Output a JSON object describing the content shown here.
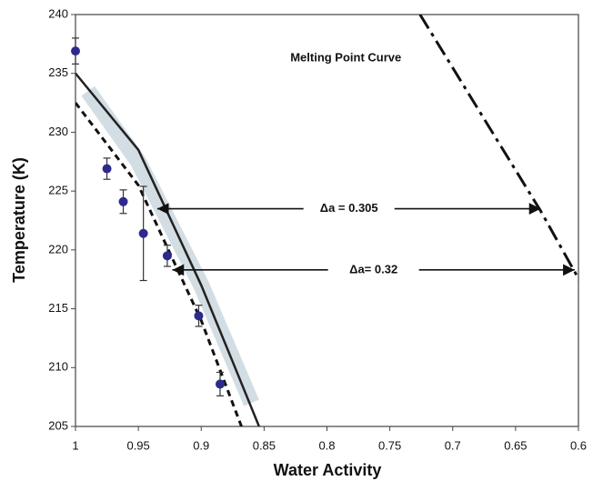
{
  "chart_data": {
    "type": "scatter",
    "xlabel": "Water Activity",
    "ylabel": "Temperature (K)",
    "xlim": [
      1,
      0.6
    ],
    "ylim": [
      205,
      240
    ],
    "xticks": [
      1,
      0.95,
      0.9,
      0.85,
      0.8,
      0.75,
      0.7,
      0.65,
      0.6
    ],
    "yticks": [
      205,
      210,
      215,
      220,
      225,
      230,
      235,
      240
    ],
    "points": {
      "color": "#2e2a8c",
      "x": [
        1.0,
        0.975,
        0.962,
        0.946,
        0.927,
        0.902,
        0.885
      ],
      "values": [
        236.9,
        226.9,
        224.1,
        221.4,
        219.5,
        214.4,
        208.6
      ],
      "errors": [
        1.1,
        0.9,
        1.0,
        4.0,
        0.9,
        0.9,
        1.0
      ]
    },
    "lines": [
      {
        "style": "band",
        "color": "#d3dde4",
        "x": [
          0.99,
          0.95,
          0.9,
          0.86
        ],
        "values": [
          233.5,
          227.5,
          217,
          207
        ]
      },
      {
        "style": "solid",
        "color": "#222222",
        "x": [
          1,
          0.95,
          0.9,
          0.875,
          0.854
        ],
        "values": [
          235,
          228.5,
          217,
          210.5,
          205
        ]
      },
      {
        "style": "dashed",
        "color": "#111111",
        "x": [
          1,
          0.95,
          0.9,
          0.868
        ],
        "values": [
          232.5,
          225.5,
          214,
          205
        ]
      },
      {
        "style": "dashdot",
        "color": "#111111",
        "x": [
          0.726,
          0.63,
          0.597
        ],
        "values": [
          240,
          223.3,
          217
        ]
      }
    ],
    "annotations": [
      {
        "text": "Melting Point Curve",
        "x": 0.785,
        "y": 236.3
      },
      {
        "text": "Δa = 0.305",
        "x": [
          0.935,
          0.63
        ],
        "y": 223.5
      },
      {
        "text": "Δa= 0.32",
        "x": [
          0.923,
          0.603
        ],
        "y": 218.3
      }
    ]
  }
}
